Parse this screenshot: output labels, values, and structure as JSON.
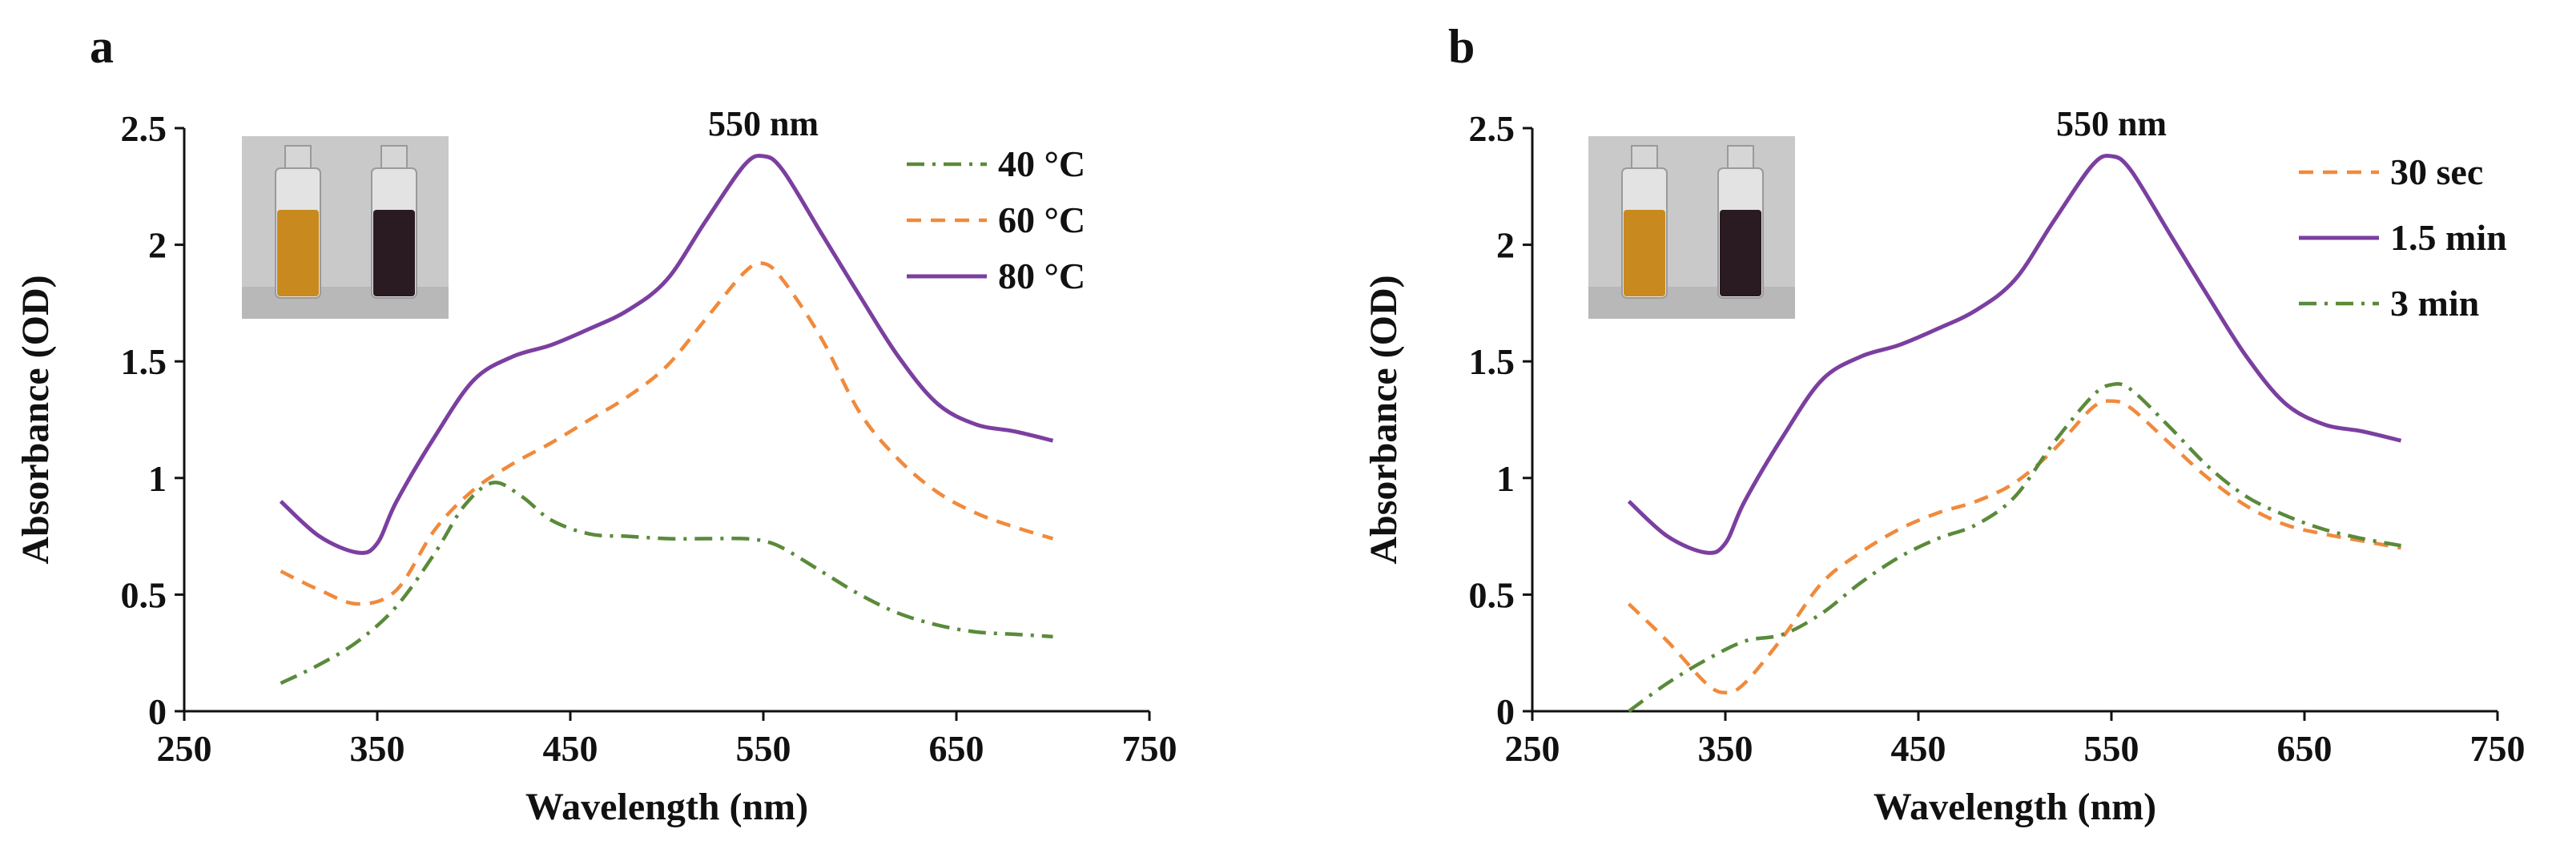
{
  "chart_data": [
    {
      "panel_label": "a",
      "type": "line",
      "xlabel": "Wavelength (nm)",
      "ylabel": "Absorbance (OD)",
      "xlim": [
        250,
        750
      ],
      "ylim": [
        0,
        2.5
      ],
      "xticks": [
        250,
        350,
        450,
        550,
        650,
        750
      ],
      "yticks": [
        0,
        0.5,
        1,
        1.5,
        2,
        2.5
      ],
      "xtick_labels": [
        "250",
        "350",
        "450",
        "550",
        "650",
        "750"
      ],
      "ytick_labels": [
        "0",
        "0.5",
        "1",
        "1.5",
        "2",
        "2.5"
      ],
      "annotation": "550 nm",
      "annotation_x": 550,
      "legend_position": "top-right",
      "series": [
        {
          "name": "40 °C",
          "style": "dash-dot",
          "color": "#5a8a3a",
          "x": [
            300,
            320,
            340,
            360,
            380,
            395,
            410,
            425,
            440,
            460,
            480,
            500,
            520,
            540,
            550,
            560,
            580,
            600,
            620,
            640,
            660,
            680,
            700
          ],
          "y": [
            0.12,
            0.2,
            0.3,
            0.45,
            0.68,
            0.88,
            0.98,
            0.92,
            0.82,
            0.76,
            0.75,
            0.74,
            0.74,
            0.74,
            0.73,
            0.7,
            0.6,
            0.5,
            0.42,
            0.37,
            0.34,
            0.33,
            0.32
          ]
        },
        {
          "name": "60 °C",
          "style": "dashed",
          "color": "#f08a3c",
          "x": [
            300,
            320,
            340,
            360,
            380,
            400,
            420,
            440,
            460,
            480,
            500,
            520,
            540,
            550,
            560,
            580,
            600,
            620,
            640,
            660,
            680,
            700
          ],
          "y": [
            0.6,
            0.52,
            0.46,
            0.52,
            0.78,
            0.95,
            1.06,
            1.15,
            1.25,
            1.35,
            1.48,
            1.68,
            1.88,
            1.92,
            1.85,
            1.6,
            1.28,
            1.08,
            0.94,
            0.85,
            0.79,
            0.74
          ]
        },
        {
          "name": "80 °C",
          "style": "solid",
          "color": "#7b3fa0",
          "x": [
            300,
            320,
            340,
            350,
            360,
            380,
            400,
            420,
            440,
            460,
            480,
            500,
            520,
            540,
            550,
            560,
            580,
            600,
            620,
            640,
            660,
            680,
            700
          ],
          "y": [
            0.9,
            0.75,
            0.68,
            0.72,
            0.9,
            1.18,
            1.42,
            1.52,
            1.57,
            1.64,
            1.72,
            1.85,
            2.1,
            2.34,
            2.38,
            2.32,
            2.05,
            1.78,
            1.52,
            1.32,
            1.23,
            1.2,
            1.16
          ]
        }
      ]
    },
    {
      "panel_label": "b",
      "type": "line",
      "xlabel": "Wavelength (nm)",
      "ylabel": "Absorbance (OD)",
      "xlim": [
        250,
        750
      ],
      "ylim": [
        0,
        2.5
      ],
      "xticks": [
        250,
        350,
        450,
        550,
        650,
        750
      ],
      "yticks": [
        0,
        0.5,
        1,
        1.5,
        2,
        2.5
      ],
      "xtick_labels": [
        "250",
        "350",
        "450",
        "550",
        "650",
        "750"
      ],
      "ytick_labels": [
        "0",
        "0.5",
        "1",
        "1.5",
        "2",
        "2.5"
      ],
      "annotation": "550 nm",
      "annotation_x": 550,
      "legend_position": "top-right",
      "series": [
        {
          "name": "30 sec",
          "style": "dashed",
          "color": "#f08a3c",
          "x": [
            300,
            320,
            340,
            350,
            360,
            380,
            400,
            420,
            440,
            460,
            480,
            500,
            520,
            540,
            550,
            560,
            580,
            600,
            620,
            640,
            660,
            680,
            700
          ],
          "y": [
            0.46,
            0.3,
            0.12,
            0.08,
            0.12,
            0.32,
            0.55,
            0.68,
            0.78,
            0.85,
            0.9,
            0.98,
            1.12,
            1.3,
            1.33,
            1.3,
            1.15,
            1.0,
            0.88,
            0.8,
            0.76,
            0.73,
            0.7
          ]
        },
        {
          "name": "1.5 min",
          "style": "solid",
          "color": "#7b3fa0",
          "x": [
            300,
            320,
            340,
            350,
            360,
            380,
            400,
            420,
            440,
            460,
            480,
            500,
            520,
            540,
            550,
            560,
            580,
            600,
            620,
            640,
            660,
            680,
            700
          ],
          "y": [
            0.9,
            0.75,
            0.68,
            0.72,
            0.9,
            1.18,
            1.42,
            1.52,
            1.57,
            1.64,
            1.72,
            1.85,
            2.1,
            2.34,
            2.38,
            2.32,
            2.05,
            1.78,
            1.52,
            1.32,
            1.23,
            1.2,
            1.16
          ]
        },
        {
          "name": "3 min",
          "style": "dash-dot",
          "color": "#5a8a3a",
          "x": [
            300,
            320,
            340,
            360,
            380,
            400,
            420,
            440,
            460,
            480,
            500,
            520,
            540,
            550,
            560,
            580,
            600,
            620,
            640,
            660,
            680,
            700
          ],
          "y": [
            0.0,
            0.12,
            0.22,
            0.3,
            0.33,
            0.42,
            0.55,
            0.66,
            0.74,
            0.8,
            0.92,
            1.15,
            1.35,
            1.4,
            1.38,
            1.22,
            1.05,
            0.92,
            0.84,
            0.78,
            0.74,
            0.71
          ]
        }
      ]
    }
  ]
}
